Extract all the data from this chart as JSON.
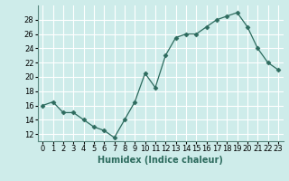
{
  "x": [
    0,
    1,
    2,
    3,
    4,
    5,
    6,
    7,
    8,
    9,
    10,
    11,
    12,
    13,
    14,
    15,
    16,
    17,
    18,
    19,
    20,
    21,
    22,
    23
  ],
  "y": [
    16,
    16.5,
    15,
    15,
    14,
    13,
    12.5,
    11.5,
    14,
    16.5,
    20.5,
    18.5,
    23,
    25.5,
    26,
    26,
    27,
    28,
    28.5,
    29,
    27,
    24,
    22,
    21
  ],
  "xlabel": "Humidex (Indice chaleur)",
  "xlim": [
    -0.5,
    23.5
  ],
  "ylim": [
    11,
    30
  ],
  "yticks": [
    12,
    14,
    16,
    18,
    20,
    22,
    24,
    26,
    28
  ],
  "xticks": [
    0,
    1,
    2,
    3,
    4,
    5,
    6,
    7,
    8,
    9,
    10,
    11,
    12,
    13,
    14,
    15,
    16,
    17,
    18,
    19,
    20,
    21,
    22,
    23
  ],
  "line_color": "#2d6b5e",
  "marker": "D",
  "marker_size": 2.5,
  "bg_color": "#ceecea",
  "grid_color": "#ffffff",
  "xlabel_fontsize": 7,
  "tick_fontsize": 6,
  "spine_color": "#5a8a80"
}
